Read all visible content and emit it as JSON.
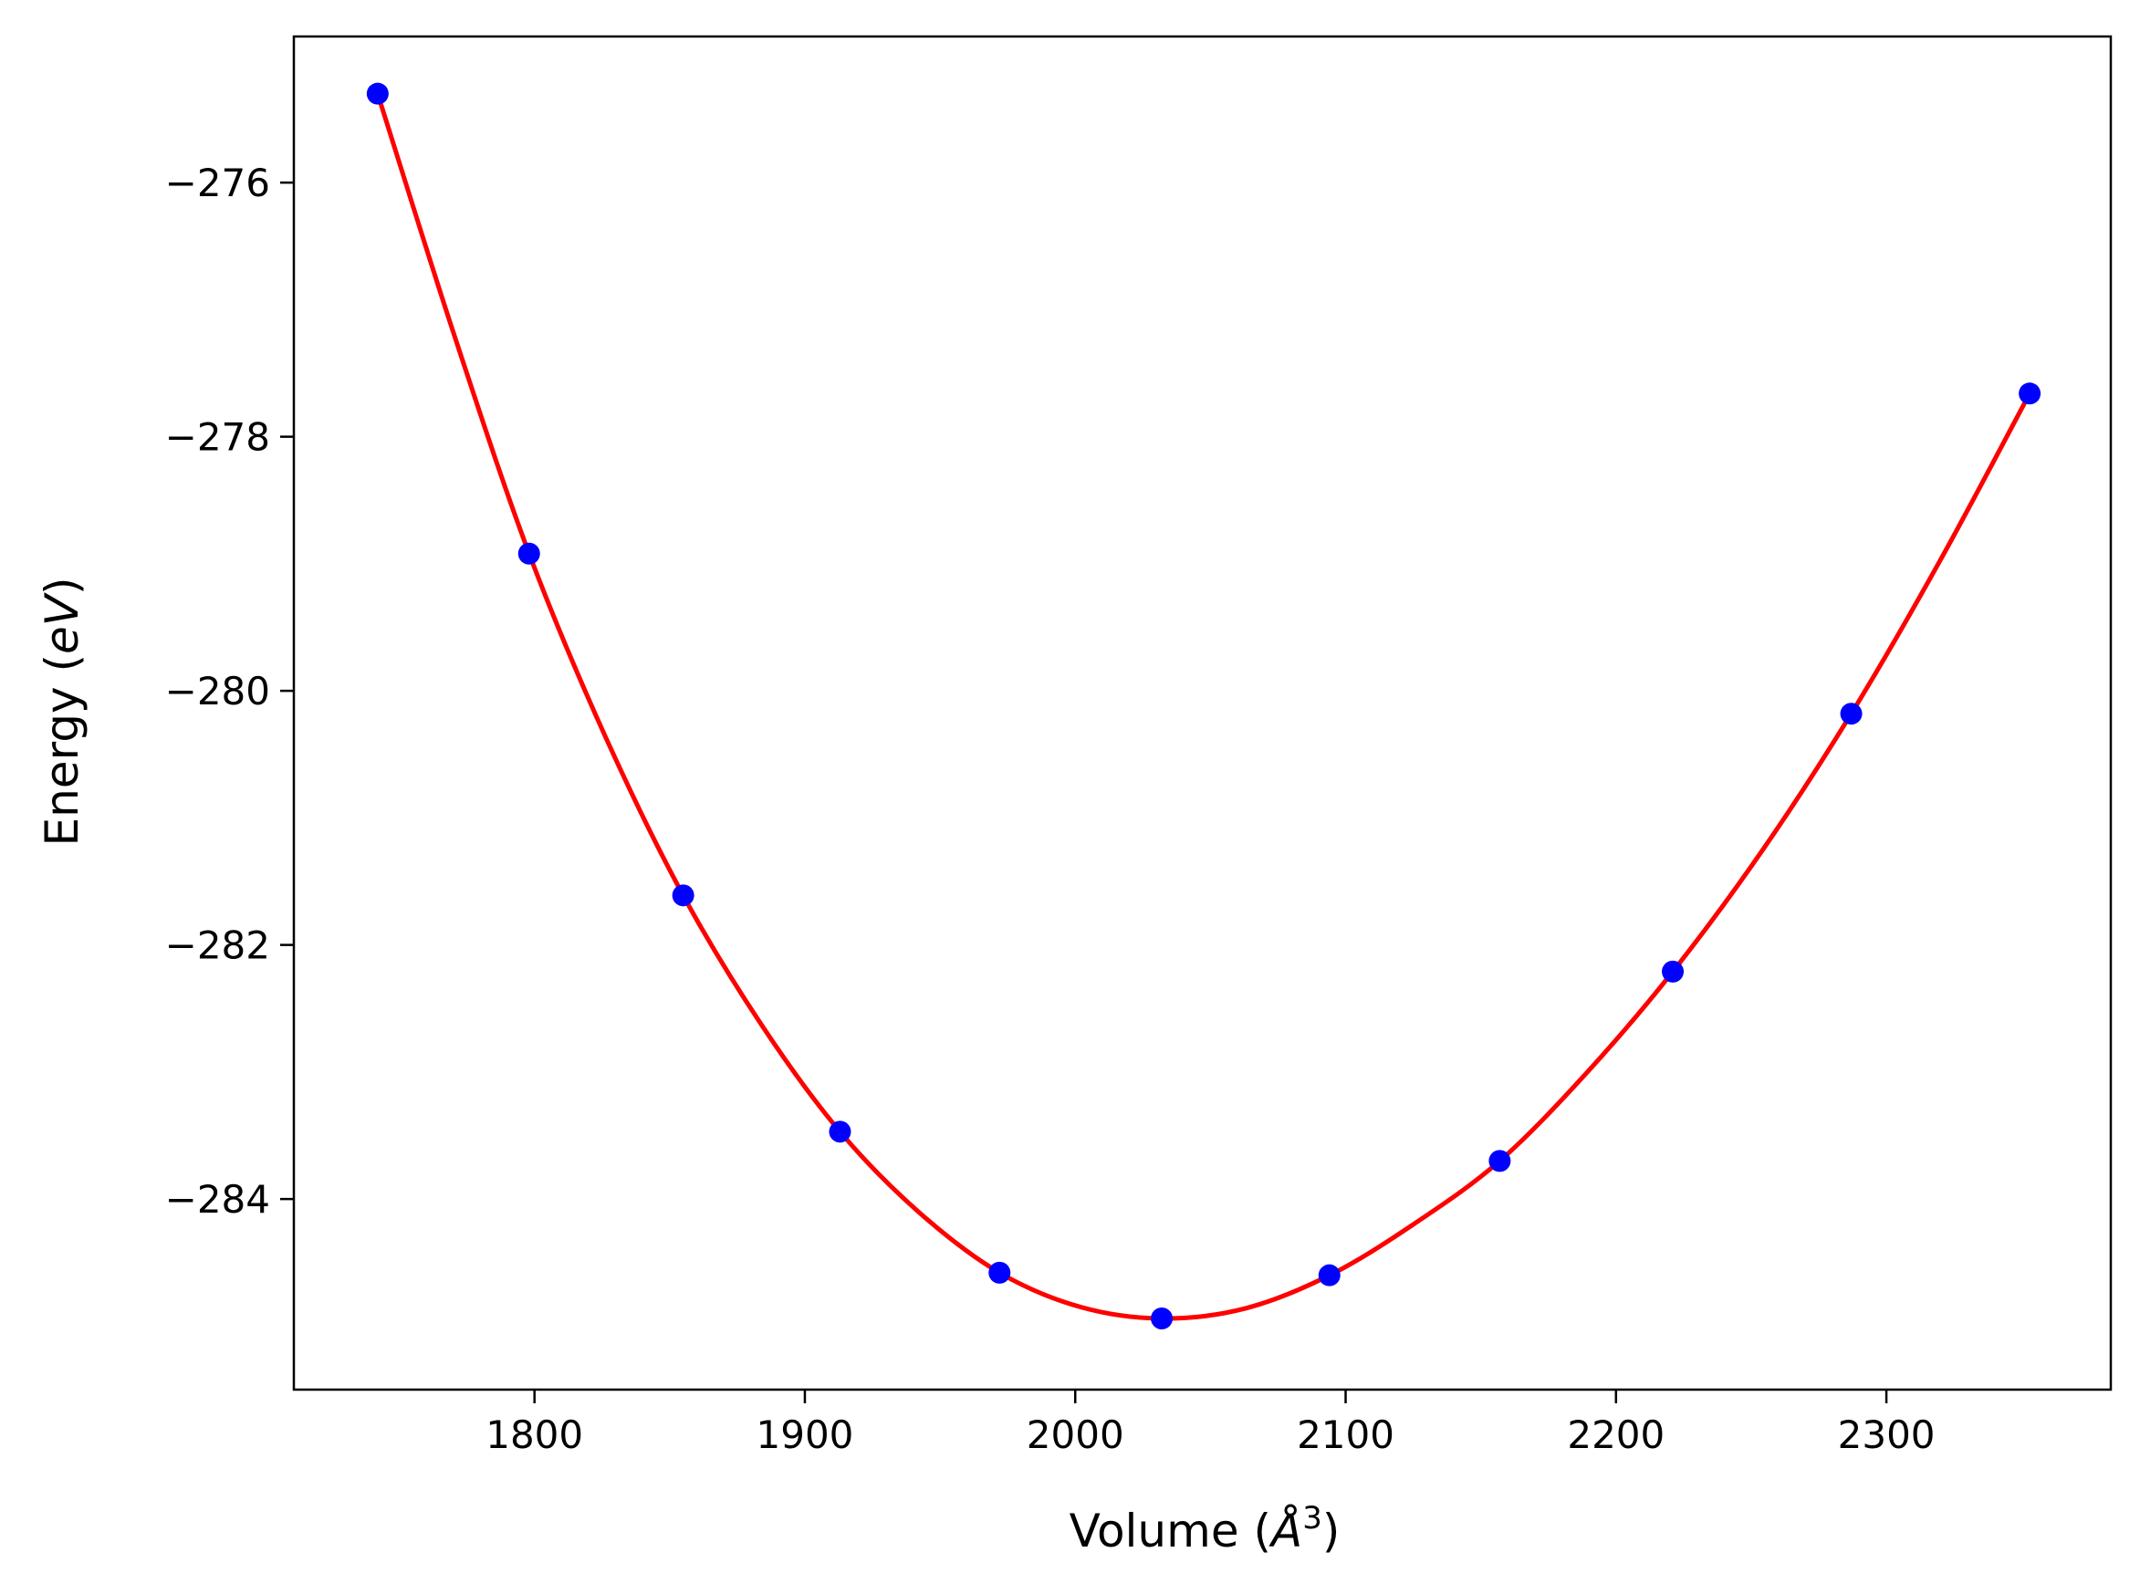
{
  "chart_data": {
    "type": "scatter",
    "title": "",
    "xlabel": {
      "prefix": "Volume (",
      "symbol": "Å",
      "sup": "3",
      "suffix": ")"
    },
    "ylabel": {
      "prefix": "Energy (",
      "italic": "eV",
      "suffix": ")"
    },
    "xlim": [
      1711,
      2383
    ],
    "ylim": [
      -285.5,
      -274.85
    ],
    "xticks": [
      1800,
      1900,
      2000,
      2100,
      2200,
      2300
    ],
    "xtick_labels": [
      "1800",
      "1900",
      "2000",
      "2100",
      "2200",
      "2300"
    ],
    "yticks": [
      -276,
      -278,
      -280,
      -282,
      -284
    ],
    "ytick_labels": [
      "−276",
      "−278",
      "−280",
      "−282",
      "−284"
    ],
    "grid": false,
    "series": [
      {
        "kind": "points",
        "color": "#0000ff",
        "x": [
          1742,
          1798,
          1855,
          1913,
          1972,
          2032,
          2094,
          2157,
          2221,
          2287,
          2353
        ],
        "y": [
          -275.3,
          -278.92,
          -281.61,
          -283.47,
          -284.58,
          -284.94,
          -284.6,
          -283.7,
          -282.21,
          -280.18,
          -277.66
        ]
      },
      {
        "kind": "fit-line",
        "color": "#ff0000",
        "x": [
          1742,
          1770,
          1798,
          1826,
          1855,
          1884,
          1913,
          1942,
          1972,
          2002,
          2032,
          2063,
          2094,
          2125,
          2157,
          2189,
          2221,
          2254,
          2287,
          2320,
          2353
        ],
        "y": [
          -275.3,
          -277.18,
          -278.92,
          -280.35,
          -281.61,
          -282.63,
          -283.47,
          -284.1,
          -284.58,
          -284.85,
          -284.94,
          -284.86,
          -284.6,
          -284.2,
          -283.7,
          -283.01,
          -282.21,
          -281.26,
          -280.18,
          -278.97,
          -277.66
        ]
      }
    ]
  }
}
